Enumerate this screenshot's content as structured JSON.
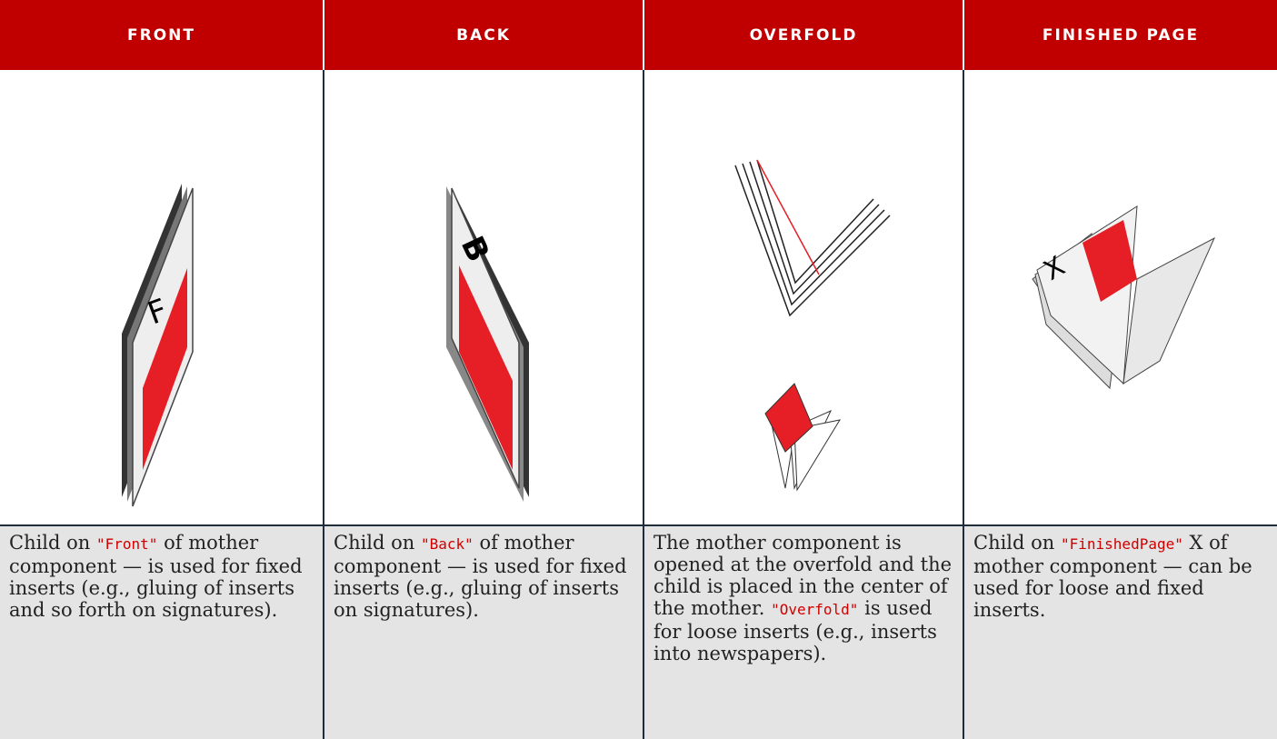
{
  "table": {
    "header": [
      "FRONT",
      "BACK",
      "OVERFOLD",
      "FINISHED PAGE"
    ],
    "descriptions": [
      {
        "before": "Child on ",
        "code": "\"Front\"",
        "after": " of mother component — is used for fixed inserts (e.g., gluing of inserts and so forth on signatures)."
      },
      {
        "before": "Child on ",
        "code": "\"Back\"",
        "after": " of mother component — is used for fixed inserts (e.g., gluing of inserts on signatures)."
      },
      {
        "before": "The mother component is opened at the overfold and the child is placed in the center of the mother. ",
        "code": "\"Overfold\"",
        "after": " is used for loose inserts (e.g., inserts into newspapers)."
      },
      {
        "before": "Child on ",
        "code": "\"FinishedPage\"",
        "after": " X of mother component — can be used for loose and fixed inserts."
      }
    ],
    "labels": {
      "front": "F",
      "back": "B",
      "finished": "X"
    }
  }
}
